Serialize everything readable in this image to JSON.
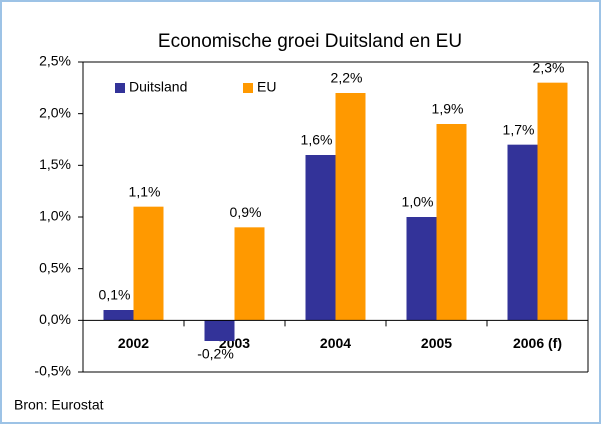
{
  "chart_data": {
    "type": "bar",
    "title": "Economische groei Duitsland en EU",
    "categories": [
      "2002",
      "2003",
      "2004",
      "2005",
      "2006 (f)"
    ],
    "series": [
      {
        "name": "Duitsland",
        "color": "#333399",
        "values": [
          0.1,
          -0.2,
          1.6,
          1.0,
          1.7
        ],
        "value_labels": [
          "0,1%",
          "-0,2%",
          "1,6%",
          "1,0%",
          "1,7%"
        ]
      },
      {
        "name": "EU",
        "color": "#ff9900",
        "values": [
          1.1,
          0.9,
          2.2,
          1.9,
          2.3
        ],
        "value_labels": [
          "1,1%",
          "0,9%",
          "2,2%",
          "1,9%",
          "2,3%"
        ]
      }
    ],
    "ylim": [
      -0.5,
      2.5
    ],
    "yticks": [
      {
        "value": -0.5,
        "label": "-0,5%"
      },
      {
        "value": 0,
        "label": "0,0%"
      },
      {
        "value": 0.5,
        "label": "0,5%"
      },
      {
        "value": 1,
        "label": "1,0%"
      },
      {
        "value": 1.5,
        "label": "1,5%"
      },
      {
        "value": 2,
        "label": "2,0%"
      },
      {
        "value": 2.5,
        "label": "2,5%"
      }
    ],
    "legend": "upper left",
    "grid": false,
    "source": "Bron: Eurostat"
  }
}
